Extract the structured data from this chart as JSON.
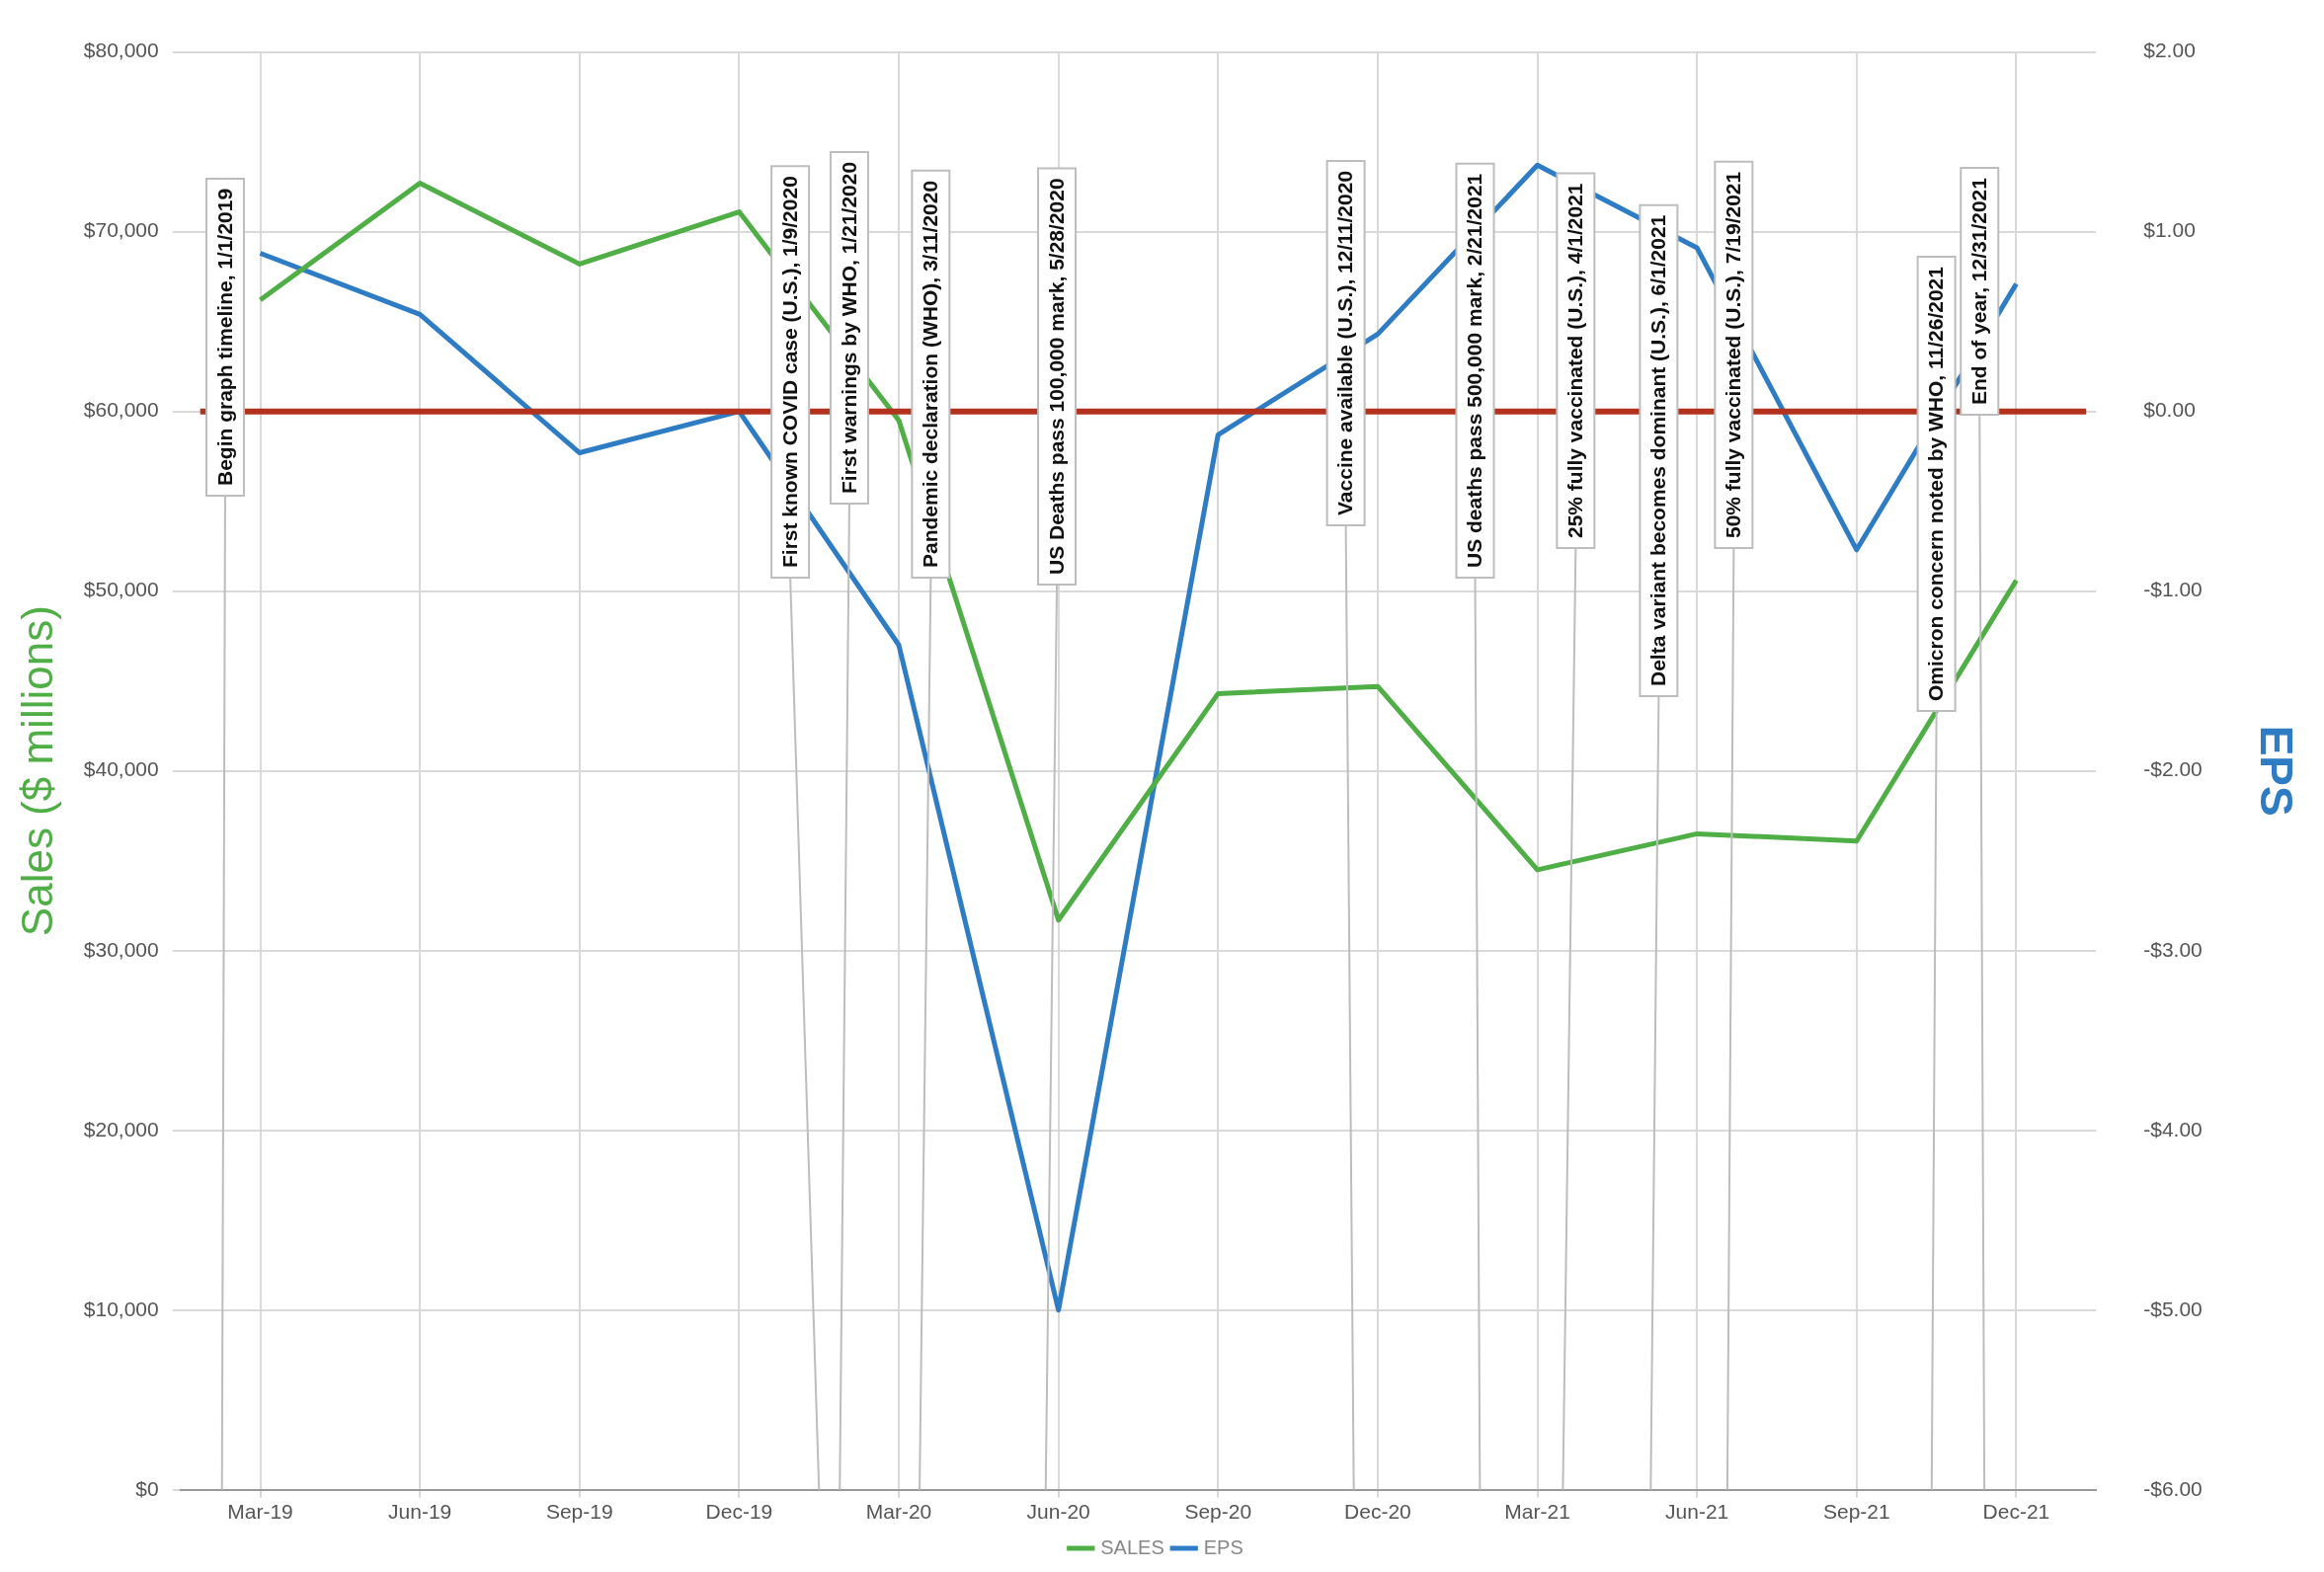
{
  "chart_data": {
    "type": "line",
    "categories": [
      "Mar-19",
      "Jun-19",
      "Sep-19",
      "Dec-19",
      "Mar-20",
      "Jun-20",
      "Sep-20",
      "Dec-20",
      "Mar-21",
      "Jun-21",
      "Sep-21",
      "Dec-21"
    ],
    "series": [
      {
        "name": "SALES",
        "color": "#4fae45",
        "values": [
          66200,
          72700,
          68200,
          71100,
          59500,
          31700,
          44300,
          44700,
          34500,
          36500,
          36100,
          50600
        ]
      },
      {
        "name": "EPS",
        "color": "#2e7cc4",
        "axis": "y2",
        "values": [
          0.88,
          0.54,
          -0.23,
          0.0,
          -1.3,
          -5.0,
          -0.13,
          0.43,
          1.37,
          0.91,
          -0.77,
          0.71
        ]
      }
    ],
    "ylabel": "Sales ($ millions)",
    "y2label": "EPS",
    "ylim": [
      0,
      80000
    ],
    "yticks": [
      {
        "value": 0,
        "label": "$0"
      },
      {
        "value": 10000,
        "label": "$10,000"
      },
      {
        "value": 20000,
        "label": "$20,000"
      },
      {
        "value": 30000,
        "label": "$30,000"
      },
      {
        "value": 40000,
        "label": "$40,000"
      },
      {
        "value": 50000,
        "label": "$50,000"
      },
      {
        "value": 60000,
        "label": "$60,000"
      },
      {
        "value": 70000,
        "label": "$70,000"
      },
      {
        "value": 80000,
        "label": "$80,000"
      }
    ],
    "y2lim": [
      -6,
      2
    ],
    "y2ticks": [
      {
        "value": -6,
        "label": "-$6.00"
      },
      {
        "value": -5,
        "label": "-$5.00"
      },
      {
        "value": -4,
        "label": "-$4.00"
      },
      {
        "value": -3,
        "label": "-$3.00"
      },
      {
        "value": -2,
        "label": "-$2.00"
      },
      {
        "value": -1,
        "label": "-$1.00"
      },
      {
        "value": 0,
        "label": "$0.00"
      },
      {
        "value": 1,
        "label": "$1.00"
      },
      {
        "value": 2,
        "label": "$2.00"
      }
    ],
    "ref_lines": [
      {
        "axis": "y2",
        "value": 0,
        "color": "#b3321d"
      }
    ],
    "annotations": [
      "Begin graph timeline, 1/1/2019",
      "First known COVID case (U.S.), 1/9/2020",
      "First warnings by WHO, 1/21/2020",
      "Pandemic declaration (WHO), 3/11/2020",
      "US Deaths pass 100,000 mark, 5/28/2020",
      "Vaccine available (U.S.), 12/11/2020",
      "US deaths pass 500,000 mark, 2/21/2021",
      "25% fully vaccinated (U.S.), 4/1/2021",
      "Delta variant becomes dominant (U.S.), 6/1/2021",
      "50% fully vaccinated (U.S.), 7/19/2021",
      "Omicron concern noted by WHO, 11/26/2021",
      "End of year, 12/31/2021"
    ],
    "legend": "bottom",
    "grid": true,
    "marker": "none"
  }
}
